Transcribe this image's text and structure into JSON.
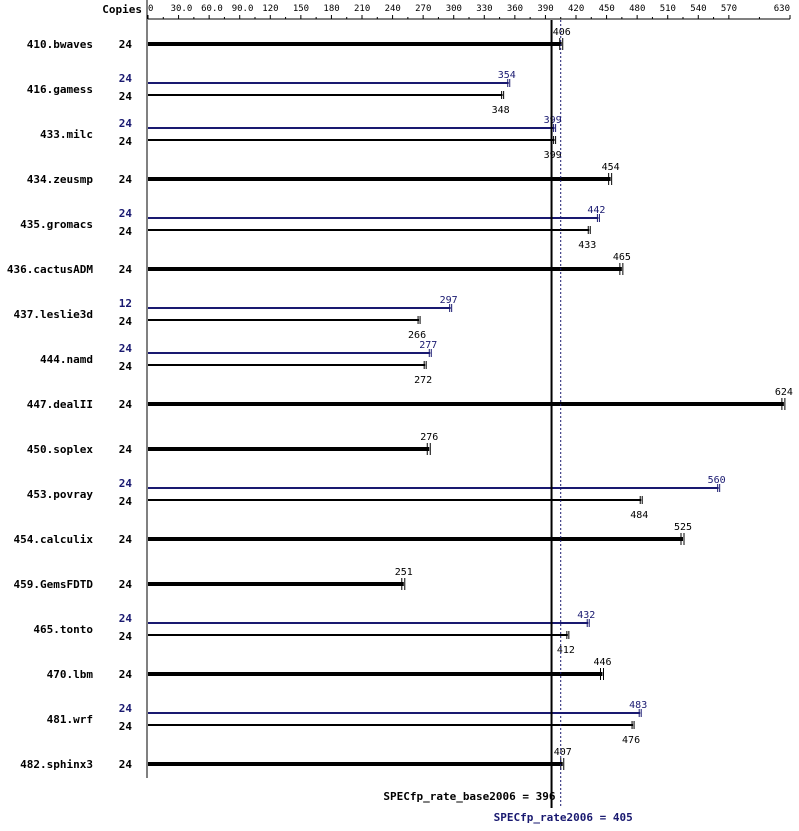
{
  "chart_data": {
    "type": "bar",
    "orientation": "horizontal",
    "x_axis_title": "Copies",
    "xlim": [
      0,
      630
    ],
    "x_ticks": [
      0,
      30,
      60,
      90,
      120,
      150,
      180,
      210,
      240,
      270,
      300,
      330,
      360,
      390,
      420,
      450,
      480,
      510,
      540,
      570,
      630
    ],
    "x_tick_labels": [
      "0",
      "30.0",
      "60.0",
      "90.0",
      "120",
      "150",
      "180",
      "210",
      "240",
      "270",
      "300",
      "330",
      "360",
      "390",
      "420",
      "450",
      "480",
      "510",
      "540",
      "570",
      "630"
    ],
    "colors": {
      "base": "#000000",
      "peak": "#191970",
      "grid": "#000000"
    },
    "benchmarks": [
      {
        "name": "410.bwaves",
        "base": {
          "copies": "24",
          "value": 406,
          "label": "406"
        },
        "peak": null
      },
      {
        "name": "416.gamess",
        "base": {
          "copies": "24",
          "value": 348,
          "label": "348"
        },
        "peak": {
          "copies": "24",
          "value": 354,
          "label": "354"
        }
      },
      {
        "name": "433.milc",
        "base": {
          "copies": "24",
          "value": 399,
          "label": "399"
        },
        "peak": {
          "copies": "24",
          "value": 399,
          "label": "399"
        }
      },
      {
        "name": "434.zeusmp",
        "base": {
          "copies": "24",
          "value": 454,
          "label": "454"
        },
        "peak": null
      },
      {
        "name": "435.gromacs",
        "base": {
          "copies": "24",
          "value": 433,
          "label": "433"
        },
        "peak": {
          "copies": "24",
          "value": 442,
          "label": "442"
        }
      },
      {
        "name": "436.cactusADM",
        "base": {
          "copies": "24",
          "value": 465,
          "label": "465"
        },
        "peak": null
      },
      {
        "name": "437.leslie3d",
        "base": {
          "copies": "24",
          "value": 266,
          "label": "266"
        },
        "peak": {
          "copies": "12",
          "value": 297,
          "label": "297"
        }
      },
      {
        "name": "444.namd",
        "base": {
          "copies": "24",
          "value": 272,
          "label": "272"
        },
        "peak": {
          "copies": "24",
          "value": 277,
          "label": "277"
        }
      },
      {
        "name": "447.dealII",
        "base": {
          "copies": "24",
          "value": 624,
          "label": "624"
        },
        "peak": null
      },
      {
        "name": "450.soplex",
        "base": {
          "copies": "24",
          "value": 276,
          "label": "276"
        },
        "peak": null
      },
      {
        "name": "453.povray",
        "base": {
          "copies": "24",
          "value": 484,
          "label": "484"
        },
        "peak": {
          "copies": "24",
          "value": 560,
          "label": "560"
        }
      },
      {
        "name": "454.calculix",
        "base": {
          "copies": "24",
          "value": 525,
          "label": "525"
        },
        "peak": null
      },
      {
        "name": "459.GemsFDTD",
        "base": {
          "copies": "24",
          "value": 251,
          "label": "251"
        },
        "peak": null
      },
      {
        "name": "465.tonto",
        "base": {
          "copies": "24",
          "value": 412,
          "label": "412"
        },
        "peak": {
          "copies": "24",
          "value": 432,
          "label": "432"
        }
      },
      {
        "name": "470.lbm",
        "base": {
          "copies": "24",
          "value": 446,
          "label": "446"
        },
        "peak": null
      },
      {
        "name": "481.wrf",
        "base": {
          "copies": "24",
          "value": 476,
          "label": "476"
        },
        "peak": {
          "copies": "24",
          "value": 483,
          "label": "483"
        }
      },
      {
        "name": "482.sphinx3",
        "base": {
          "copies": "24",
          "value": 407,
          "label": "407"
        },
        "peak": null
      }
    ],
    "reference_lines": [
      {
        "kind": "base",
        "value": 396,
        "label": "SPECfp_rate_base2006 = 396"
      },
      {
        "kind": "peak",
        "value": 405,
        "label": "SPECfp_rate2006 = 405"
      }
    ]
  }
}
